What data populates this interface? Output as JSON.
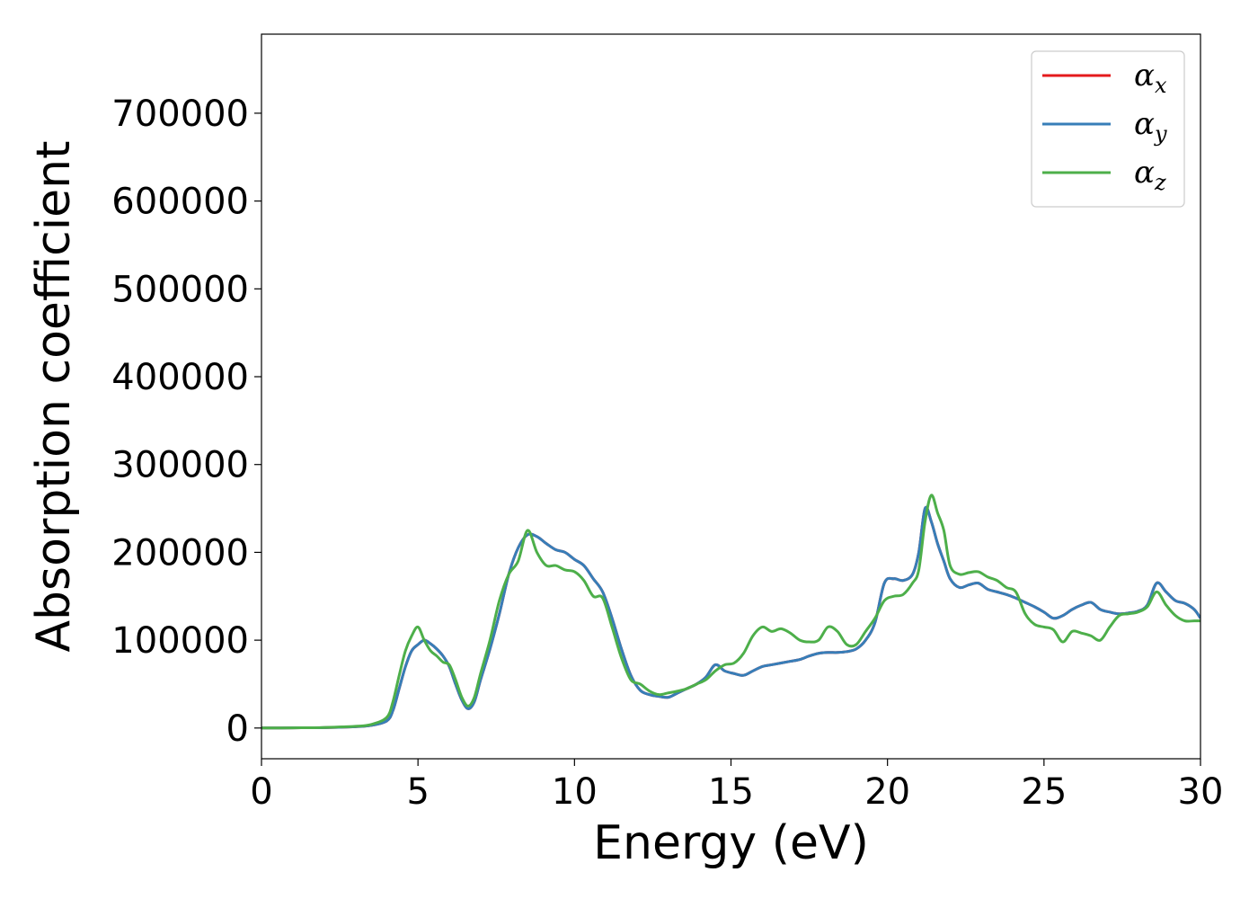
{
  "chart_data": {
    "type": "line",
    "xlabel": "Energy (eV)",
    "ylabel": "Absorption coefficient",
    "xlim": [
      0,
      30
    ],
    "ylim": [
      -35000,
      790000
    ],
    "xticks": [
      0,
      5,
      10,
      15,
      20,
      25,
      30
    ],
    "yticks": [
      0,
      100000,
      200000,
      300000,
      400000,
      500000,
      600000,
      700000
    ],
    "grid": false,
    "legend_position": "top-right",
    "series": [
      {
        "name": "x",
        "color": "#e41a1c",
        "x": [
          0,
          1,
          2,
          3,
          3.5,
          4,
          4.2,
          4.4,
          4.6,
          4.8,
          5.0,
          5.2,
          5.4,
          5.6,
          5.8,
          6.0,
          6.2,
          6.4,
          6.6,
          6.8,
          7.0,
          7.3,
          7.6,
          7.9,
          8.2,
          8.5,
          8.8,
          9.1,
          9.4,
          9.7,
          10.0,
          10.3,
          10.6,
          10.9,
          11.2,
          11.5,
          11.8,
          12.1,
          12.4,
          12.7,
          13.0,
          13.3,
          13.6,
          13.9,
          14.2,
          14.5,
          14.8,
          15.1,
          15.4,
          15.7,
          16.0,
          16.3,
          16.6,
          16.9,
          17.2,
          17.5,
          17.8,
          18.1,
          18.4,
          18.7,
          19.0,
          19.3,
          19.6,
          19.9,
          20.2,
          20.5,
          20.8,
          21.0,
          21.2,
          21.4,
          21.6,
          21.8,
          22.0,
          22.3,
          22.6,
          22.9,
          23.2,
          23.5,
          23.8,
          24.1,
          24.4,
          24.7,
          25.0,
          25.3,
          25.6,
          25.9,
          26.2,
          26.5,
          26.8,
          27.1,
          27.4,
          27.7,
          28.0,
          28.3,
          28.6,
          28.9,
          29.2,
          29.5,
          29.8,
          30.0
        ],
        "y": [
          0,
          200,
          500,
          1500,
          3000,
          8000,
          20000,
          45000,
          70000,
          88000,
          95000,
          100000,
          96000,
          90000,
          82000,
          70000,
          50000,
          32000,
          22000,
          30000,
          55000,
          90000,
          130000,
          175000,
          205000,
          220000,
          218000,
          210000,
          203000,
          200000,
          192000,
          185000,
          170000,
          155000,
          125000,
          90000,
          60000,
          43000,
          38000,
          36000,
          35000,
          40000,
          45000,
          50000,
          58000,
          72000,
          65000,
          62000,
          60000,
          65000,
          70000,
          72000,
          74000,
          76000,
          78000,
          82000,
          85000,
          86000,
          86000,
          87000,
          90000,
          100000,
          120000,
          165000,
          170000,
          168000,
          175000,
          200000,
          250000,
          235000,
          210000,
          190000,
          170000,
          160000,
          163000,
          165000,
          158000,
          155000,
          152000,
          148000,
          143000,
          138000,
          132000,
          125000,
          128000,
          135000,
          140000,
          143000,
          135000,
          132000,
          130000,
          131000,
          133000,
          140000,
          165000,
          155000,
          145000,
          142000,
          135000,
          125000
        ]
      },
      {
        "name": "y",
        "color": "#377eb8",
        "x": [
          0,
          1,
          2,
          3,
          3.5,
          4,
          4.2,
          4.4,
          4.6,
          4.8,
          5.0,
          5.2,
          5.4,
          5.6,
          5.8,
          6.0,
          6.2,
          6.4,
          6.6,
          6.8,
          7.0,
          7.3,
          7.6,
          7.9,
          8.2,
          8.5,
          8.8,
          9.1,
          9.4,
          9.7,
          10.0,
          10.3,
          10.6,
          10.9,
          11.2,
          11.5,
          11.8,
          12.1,
          12.4,
          12.7,
          13.0,
          13.3,
          13.6,
          13.9,
          14.2,
          14.5,
          14.8,
          15.1,
          15.4,
          15.7,
          16.0,
          16.3,
          16.6,
          16.9,
          17.2,
          17.5,
          17.8,
          18.1,
          18.4,
          18.7,
          19.0,
          19.3,
          19.6,
          19.9,
          20.2,
          20.5,
          20.8,
          21.0,
          21.2,
          21.4,
          21.6,
          21.8,
          22.0,
          22.3,
          22.6,
          22.9,
          23.2,
          23.5,
          23.8,
          24.1,
          24.4,
          24.7,
          25.0,
          25.3,
          25.6,
          25.9,
          26.2,
          26.5,
          26.8,
          27.1,
          27.4,
          27.7,
          28.0,
          28.3,
          28.6,
          28.9,
          29.2,
          29.5,
          29.8,
          30.0
        ],
        "y": [
          0,
          200,
          500,
          1500,
          3000,
          8000,
          20000,
          45000,
          70000,
          88000,
          95000,
          100000,
          96000,
          90000,
          82000,
          70000,
          50000,
          32000,
          22000,
          30000,
          55000,
          90000,
          130000,
          175000,
          205000,
          220000,
          218000,
          210000,
          203000,
          200000,
          192000,
          185000,
          170000,
          155000,
          125000,
          90000,
          60000,
          43000,
          38000,
          36000,
          35000,
          40000,
          45000,
          50000,
          58000,
          72000,
          65000,
          62000,
          60000,
          65000,
          70000,
          72000,
          74000,
          76000,
          78000,
          82000,
          85000,
          86000,
          86000,
          87000,
          90000,
          100000,
          120000,
          165000,
          170000,
          168000,
          175000,
          200000,
          250000,
          235000,
          210000,
          190000,
          170000,
          160000,
          163000,
          165000,
          158000,
          155000,
          152000,
          148000,
          143000,
          138000,
          132000,
          125000,
          128000,
          135000,
          140000,
          143000,
          135000,
          132000,
          130000,
          131000,
          133000,
          140000,
          165000,
          155000,
          145000,
          142000,
          135000,
          125000
        ]
      },
      {
        "name": "z",
        "color": "#4daf4a",
        "x": [
          0,
          1,
          2,
          3,
          3.5,
          4,
          4.2,
          4.4,
          4.6,
          4.8,
          5.0,
          5.2,
          5.4,
          5.6,
          5.8,
          6.0,
          6.2,
          6.4,
          6.6,
          6.8,
          7.0,
          7.3,
          7.6,
          7.9,
          8.2,
          8.5,
          8.8,
          9.1,
          9.4,
          9.7,
          10.0,
          10.3,
          10.6,
          10.9,
          11.2,
          11.5,
          11.8,
          12.1,
          12.4,
          12.7,
          13.0,
          13.3,
          13.6,
          13.9,
          14.2,
          14.5,
          14.8,
          15.1,
          15.4,
          15.7,
          16.0,
          16.3,
          16.6,
          16.9,
          17.2,
          17.5,
          17.8,
          18.1,
          18.4,
          18.7,
          19.0,
          19.3,
          19.6,
          19.9,
          20.2,
          20.5,
          20.8,
          21.0,
          21.2,
          21.4,
          21.6,
          21.8,
          22.0,
          22.3,
          22.6,
          22.9,
          23.2,
          23.5,
          23.8,
          24.1,
          24.4,
          24.7,
          25.0,
          25.3,
          25.6,
          25.9,
          26.2,
          26.5,
          26.8,
          27.1,
          27.4,
          27.7,
          28.0,
          28.3,
          28.6,
          28.9,
          29.2,
          29.5,
          29.8,
          30.0
        ],
        "y": [
          0,
          200,
          600,
          2000,
          4000,
          12000,
          30000,
          60000,
          88000,
          105000,
          115000,
          100000,
          88000,
          82000,
          75000,
          72000,
          55000,
          35000,
          25000,
          35000,
          62000,
          100000,
          145000,
          175000,
          190000,
          225000,
          200000,
          185000,
          185000,
          180000,
          178000,
          168000,
          150000,
          148000,
          115000,
          80000,
          55000,
          50000,
          42000,
          38000,
          40000,
          42000,
          45000,
          50000,
          55000,
          65000,
          72000,
          74000,
          85000,
          105000,
          115000,
          110000,
          113000,
          108000,
          100000,
          98000,
          100000,
          115000,
          110000,
          95000,
          95000,
          110000,
          125000,
          145000,
          150000,
          152000,
          165000,
          180000,
          235000,
          265000,
          245000,
          225000,
          185000,
          175000,
          177000,
          178000,
          172000,
          168000,
          160000,
          155000,
          130000,
          118000,
          115000,
          112000,
          98000,
          110000,
          108000,
          105000,
          100000,
          115000,
          128000,
          130000,
          132000,
          138000,
          155000,
          140000,
          128000,
          122000,
          122000,
          122000
        ]
      }
    ]
  }
}
